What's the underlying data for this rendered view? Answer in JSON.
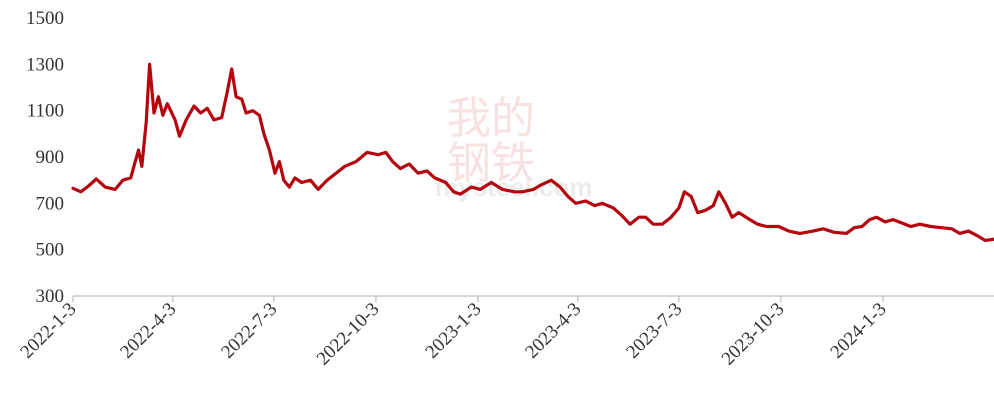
{
  "watermark": {
    "logo_text": "我的钢铁",
    "site": "mysteel.com"
  },
  "chart_data": {
    "type": "line",
    "color": "#b5050f",
    "ylim": [
      300,
      1500
    ],
    "yticks": [
      300,
      500,
      700,
      900,
      1100,
      1300,
      1500
    ],
    "xlim": [
      "2022-01-03",
      "2024-04-12"
    ],
    "xticks": [
      "2022-1-3",
      "2022-4-3",
      "2022-7-3",
      "2022-10-3",
      "2023-1-3",
      "2023-4-3",
      "2023-7-3",
      "2023-10-3",
      "2024-1-3"
    ],
    "grid": false,
    "series": [
      {
        "points": [
          [
            "2022-01-03",
            765
          ],
          [
            "2022-01-10",
            750
          ],
          [
            "2022-01-17",
            775
          ],
          [
            "2022-01-24",
            805
          ],
          [
            "2022-02-01",
            770
          ],
          [
            "2022-02-10",
            760
          ],
          [
            "2022-02-17",
            800
          ],
          [
            "2022-02-24",
            810
          ],
          [
            "2022-03-03",
            930
          ],
          [
            "2022-03-06",
            860
          ],
          [
            "2022-03-10",
            1050
          ],
          [
            "2022-03-13",
            1300
          ],
          [
            "2022-03-17",
            1090
          ],
          [
            "2022-03-21",
            1160
          ],
          [
            "2022-03-25",
            1080
          ],
          [
            "2022-03-29",
            1130
          ],
          [
            "2022-04-05",
            1060
          ],
          [
            "2022-04-09",
            990
          ],
          [
            "2022-04-15",
            1060
          ],
          [
            "2022-04-22",
            1120
          ],
          [
            "2022-04-28",
            1090
          ],
          [
            "2022-05-04",
            1110
          ],
          [
            "2022-05-10",
            1060
          ],
          [
            "2022-05-17",
            1070
          ],
          [
            "2022-05-22",
            1180
          ],
          [
            "2022-05-26",
            1280
          ],
          [
            "2022-05-30",
            1160
          ],
          [
            "2022-06-04",
            1150
          ],
          [
            "2022-06-08",
            1090
          ],
          [
            "2022-06-14",
            1100
          ],
          [
            "2022-06-20",
            1080
          ],
          [
            "2022-06-24",
            1000
          ],
          [
            "2022-06-29",
            930
          ],
          [
            "2022-07-04",
            830
          ],
          [
            "2022-07-08",
            880
          ],
          [
            "2022-07-12",
            800
          ],
          [
            "2022-07-17",
            770
          ],
          [
            "2022-07-22",
            810
          ],
          [
            "2022-07-28",
            790
          ],
          [
            "2022-08-05",
            800
          ],
          [
            "2022-08-12",
            760
          ],
          [
            "2022-08-20",
            800
          ],
          [
            "2022-08-28",
            830
          ],
          [
            "2022-09-05",
            860
          ],
          [
            "2022-09-15",
            880
          ],
          [
            "2022-09-25",
            920
          ],
          [
            "2022-10-05",
            910
          ],
          [
            "2022-10-12",
            920
          ],
          [
            "2022-10-18",
            880
          ],
          [
            "2022-10-25",
            850
          ],
          [
            "2022-11-02",
            870
          ],
          [
            "2022-11-10",
            830
          ],
          [
            "2022-11-18",
            840
          ],
          [
            "2022-11-25",
            810
          ],
          [
            "2022-12-05",
            790
          ],
          [
            "2022-12-12",
            750
          ],
          [
            "2022-12-18",
            740
          ],
          [
            "2022-12-28",
            770
          ],
          [
            "2023-01-05",
            760
          ],
          [
            "2023-01-15",
            790
          ],
          [
            "2023-01-25",
            760
          ],
          [
            "2023-02-05",
            750
          ],
          [
            "2023-02-12",
            750
          ],
          [
            "2023-02-22",
            760
          ],
          [
            "2023-03-01",
            780
          ],
          [
            "2023-03-10",
            800
          ],
          [
            "2023-03-18",
            770
          ],
          [
            "2023-03-25",
            730
          ],
          [
            "2023-04-01",
            700
          ],
          [
            "2023-04-10",
            710
          ],
          [
            "2023-04-18",
            690
          ],
          [
            "2023-04-25",
            700
          ],
          [
            "2023-05-05",
            680
          ],
          [
            "2023-05-12",
            650
          ],
          [
            "2023-05-20",
            610
          ],
          [
            "2023-05-28",
            640
          ],
          [
            "2023-06-03",
            640
          ],
          [
            "2023-06-10",
            610
          ],
          [
            "2023-06-18",
            610
          ],
          [
            "2023-06-26",
            640
          ],
          [
            "2023-07-03",
            680
          ],
          [
            "2023-07-08",
            750
          ],
          [
            "2023-07-14",
            730
          ],
          [
            "2023-07-20",
            660
          ],
          [
            "2023-07-27",
            670
          ],
          [
            "2023-08-03",
            690
          ],
          [
            "2023-08-08",
            750
          ],
          [
            "2023-08-14",
            700
          ],
          [
            "2023-08-20",
            640
          ],
          [
            "2023-08-26",
            660
          ],
          [
            "2023-09-05",
            630
          ],
          [
            "2023-09-12",
            610
          ],
          [
            "2023-09-20",
            600
          ],
          [
            "2023-10-01",
            600
          ],
          [
            "2023-10-10",
            580
          ],
          [
            "2023-10-20",
            570
          ],
          [
            "2023-11-01",
            580
          ],
          [
            "2023-11-10",
            590
          ],
          [
            "2023-11-20",
            575
          ],
          [
            "2023-12-01",
            570
          ],
          [
            "2023-12-08",
            595
          ],
          [
            "2023-12-15",
            600
          ],
          [
            "2023-12-22",
            630
          ],
          [
            "2023-12-28",
            640
          ],
          [
            "2024-01-05",
            620
          ],
          [
            "2024-01-12",
            630
          ],
          [
            "2024-01-20",
            615
          ],
          [
            "2024-01-28",
            600
          ],
          [
            "2024-02-05",
            610
          ],
          [
            "2024-02-15",
            600
          ],
          [
            "2024-02-25",
            595
          ],
          [
            "2024-03-05",
            590
          ],
          [
            "2024-03-12",
            570
          ],
          [
            "2024-03-20",
            580
          ],
          [
            "2024-03-28",
            560
          ],
          [
            "2024-04-04",
            540
          ],
          [
            "2024-04-12",
            545
          ]
        ]
      }
    ]
  }
}
